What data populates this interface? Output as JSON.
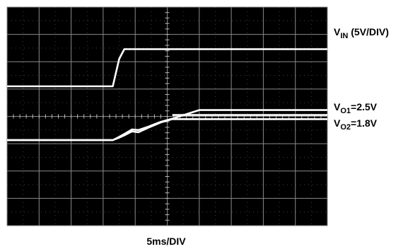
{
  "chart_data": {
    "type": "line",
    "title": "",
    "xlabel": "5ms/DIV",
    "ylabel": "",
    "x_unit": "ms",
    "x_per_div": 5,
    "xlim": [
      0,
      50
    ],
    "grid": true,
    "grid_divisions": {
      "x": 10,
      "y": 8
    },
    "background": "#000000",
    "trace_color": "#ffffff",
    "series": [
      {
        "label_main": "V",
        "label_sub": "IN",
        "label_rest": " (5V/DIV)",
        "x": [
          0,
          16.5,
          17.5,
          18.3,
          50
        ],
        "y_div": [
          5.1,
          5.1,
          6.1,
          6.46,
          6.46
        ]
      },
      {
        "label_main": "V",
        "label_sub": "O1",
        "label_rest": "=2.5V",
        "x": [
          0,
          16.5,
          17.5,
          18.5,
          19.5,
          20.5,
          22,
          24,
          26,
          28,
          30,
          50
        ],
        "y_div": [
          3.13,
          3.13,
          3.25,
          3.38,
          3.52,
          3.5,
          3.62,
          3.8,
          3.93,
          4.08,
          4.23,
          4.23
        ]
      },
      {
        "label_main": "V",
        "label_sub": "O2",
        "label_rest": "=1.8V",
        "x": [
          0,
          16.5,
          17.5,
          18.5,
          19.5,
          20.5,
          22,
          24,
          25.8,
          50
        ],
        "y_div": [
          3.13,
          3.13,
          3.22,
          3.33,
          3.45,
          3.42,
          3.58,
          3.78,
          3.9,
          3.9
        ]
      },
      {
        "label_main": "",
        "label_sub": "",
        "label_rest": "",
        "x": [
          25.8,
          50
        ],
        "y_div": [
          4.05,
          4.05
        ]
      }
    ]
  }
}
